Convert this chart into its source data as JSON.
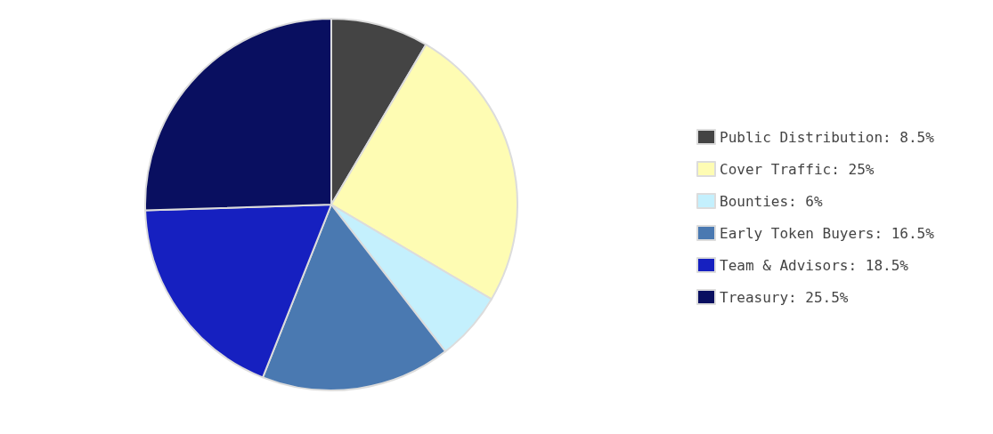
{
  "chart_data": {
    "type": "pie",
    "categories": [
      "Public Distribution: 8.5%",
      "Cover Traffic: 25%",
      "Bounties: 6%",
      "Early Token Buyers: 16.5%",
      "Team & Advisors: 18.5%",
      "Treasury: 25.5%"
    ],
    "values": [
      8.5,
      25,
      6,
      16.5,
      18.5,
      25.5
    ],
    "colors": [
      "#444444",
      "#fefcb3",
      "#c4f0fd",
      "#4a79b1",
      "#1620c0",
      "#090f60"
    ],
    "legend": "right"
  }
}
